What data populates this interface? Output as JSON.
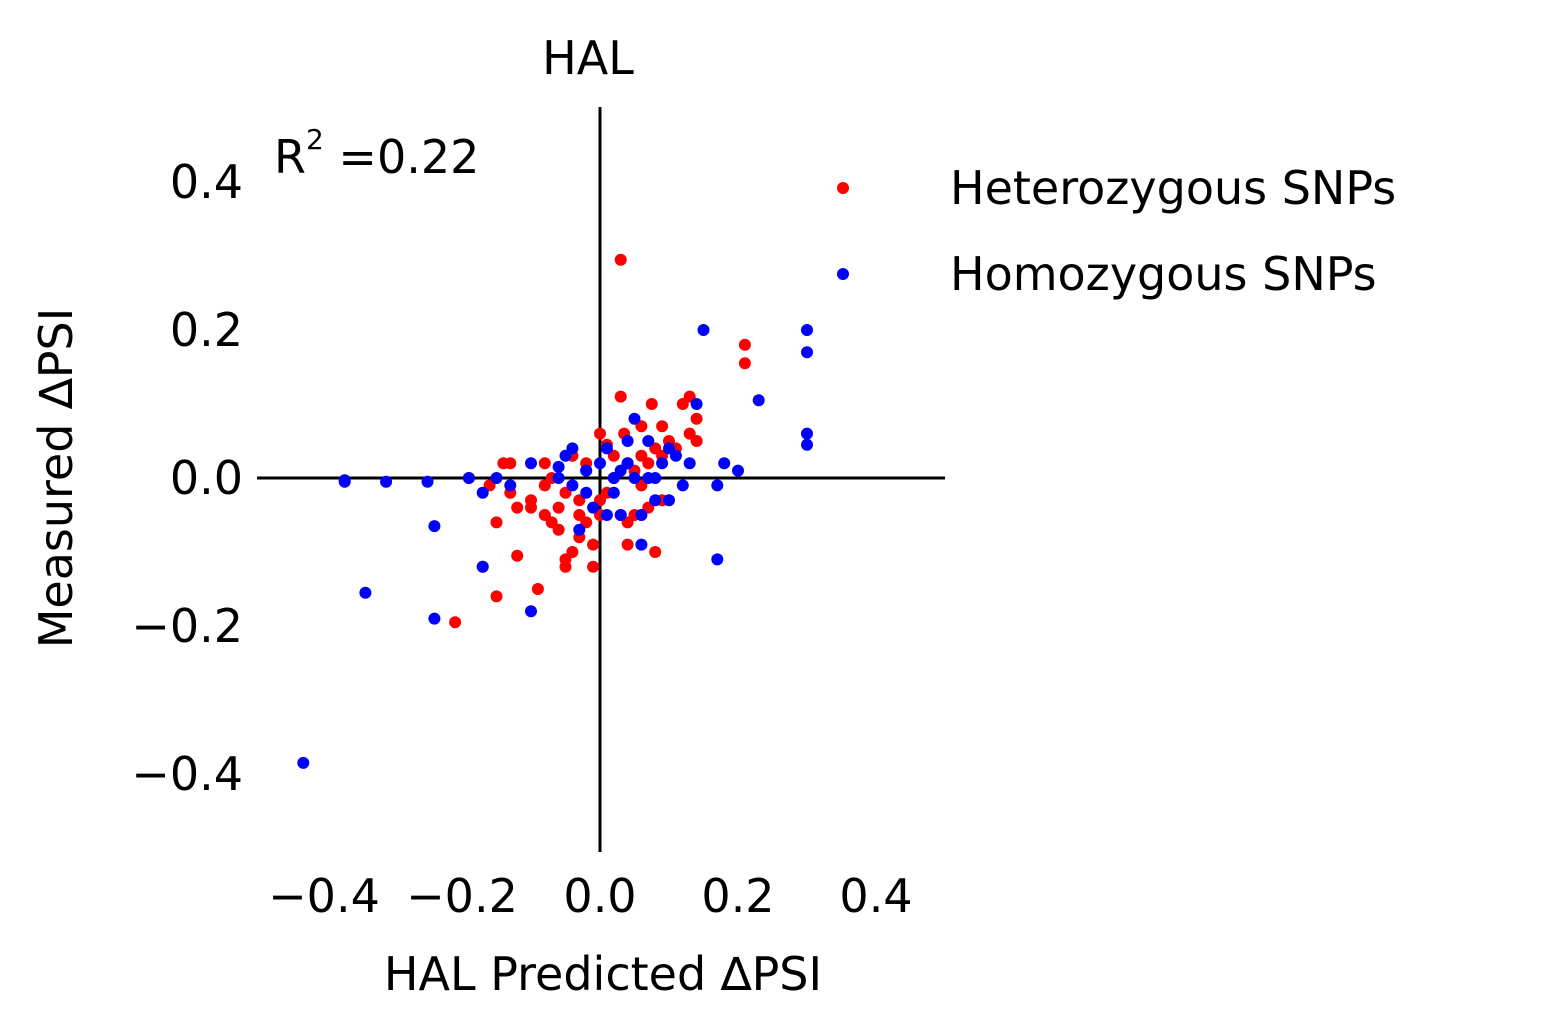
{
  "chart_data": {
    "type": "scatter",
    "title": "HAL",
    "xlabel": "HAL Predicted ∆PSI",
    "ylabel": "Measured ∆PSI",
    "xlim": [
      -0.5,
      0.5
    ],
    "ylim": [
      -0.5,
      0.5
    ],
    "x_ticks": [
      -0.4,
      -0.2,
      0.0,
      0.2,
      0.4
    ],
    "y_ticks": [
      -0.4,
      -0.2,
      0.0,
      0.2,
      0.4
    ],
    "x_tick_labels": [
      "−0.4",
      "−0.2",
      "0.0",
      "0.2",
      "0.4"
    ],
    "y_tick_labels": [
      "−0.4",
      "−0.2",
      "0.0",
      "0.2",
      "0.4"
    ],
    "grid": false,
    "legend_position": "right-top outside",
    "annotation": {
      "base": "R",
      "superscript": "2",
      "rest": " =0.22"
    },
    "series": [
      {
        "name": "Heterozygous SNPs",
        "color": "#ff0000",
        "points": [
          [
            0.03,
            0.295
          ],
          [
            0.21,
            0.18
          ],
          [
            0.21,
            0.155
          ],
          [
            0.03,
            0.11
          ],
          [
            0.13,
            0.11
          ],
          [
            0.075,
            0.1
          ],
          [
            0.12,
            0.1
          ],
          [
            0.14,
            0.08
          ],
          [
            0.06,
            0.07
          ],
          [
            0.09,
            0.07
          ],
          [
            0.13,
            0.06
          ],
          [
            0.035,
            0.06
          ],
          [
            0.0,
            0.06
          ],
          [
            0.14,
            0.05
          ],
          [
            0.1,
            0.05
          ],
          [
            0.08,
            0.04
          ],
          [
            0.01,
            0.045
          ],
          [
            0.06,
            0.03
          ],
          [
            0.04,
            0.02
          ],
          [
            -0.02,
            0.02
          ],
          [
            -0.08,
            0.02
          ],
          [
            -0.13,
            0.02
          ],
          [
            -0.14,
            0.02
          ],
          [
            -0.19,
            0.0
          ],
          [
            -0.16,
            -0.01
          ],
          [
            -0.13,
            -0.02
          ],
          [
            -0.1,
            -0.03
          ],
          [
            -0.12,
            -0.04
          ],
          [
            -0.08,
            -0.05
          ],
          [
            -0.07,
            -0.06
          ],
          [
            -0.06,
            -0.07
          ],
          [
            -0.03,
            -0.08
          ],
          [
            -0.02,
            -0.06
          ],
          [
            0.0,
            -0.05
          ],
          [
            0.03,
            -0.05
          ],
          [
            0.05,
            -0.05
          ],
          [
            0.07,
            -0.04
          ],
          [
            0.09,
            -0.03
          ],
          [
            -0.15,
            -0.06
          ],
          [
            -0.1,
            -0.04
          ],
          [
            -0.04,
            -0.1
          ],
          [
            -0.05,
            -0.11
          ],
          [
            -0.05,
            -0.12
          ],
          [
            -0.01,
            -0.12
          ],
          [
            0.04,
            -0.09
          ],
          [
            0.08,
            -0.1
          ],
          [
            -0.12,
            -0.105
          ],
          [
            -0.09,
            -0.15
          ],
          [
            -0.15,
            -0.16
          ],
          [
            -0.17,
            -0.12
          ],
          [
            -0.21,
            -0.195
          ],
          [
            -0.07,
            0.0
          ],
          [
            -0.05,
            -0.02
          ],
          [
            -0.03,
            -0.03
          ],
          [
            -0.02,
            0.01
          ],
          [
            0.02,
            0.0
          ],
          [
            0.05,
            0.01
          ],
          [
            0.06,
            -0.01
          ],
          [
            0.07,
            0.02
          ],
          [
            -0.04,
            0.03
          ],
          [
            0.01,
            -0.02
          ],
          [
            0.02,
            0.03
          ],
          [
            -0.06,
            -0.04
          ],
          [
            0.04,
            -0.06
          ],
          [
            -0.08,
            -0.01
          ],
          [
            0.11,
            0.04
          ],
          [
            0.09,
            0.03
          ],
          [
            -0.01,
            -0.09
          ],
          [
            -0.03,
            -0.05
          ],
          [
            0.0,
            -0.03
          ]
        ]
      },
      {
        "name": "Homozygous SNPs",
        "color": "#0000ff",
        "points": [
          [
            -0.43,
            -0.385
          ],
          [
            -0.34,
            -0.155
          ],
          [
            -0.24,
            -0.19
          ],
          [
            -0.24,
            -0.065
          ],
          [
            -0.25,
            -0.005
          ],
          [
            -0.31,
            -0.005
          ],
          [
            -0.37,
            -0.005
          ],
          [
            -0.37,
            -0.003
          ],
          [
            -0.17,
            -0.12
          ],
          [
            -0.1,
            -0.18
          ],
          [
            0.3,
            0.2
          ],
          [
            0.3,
            0.17
          ],
          [
            0.15,
            0.2
          ],
          [
            0.23,
            0.105
          ],
          [
            0.3,
            0.06
          ],
          [
            0.3,
            0.045
          ],
          [
            0.17,
            -0.11
          ],
          [
            0.14,
            0.1
          ],
          [
            0.18,
            0.02
          ],
          [
            0.2,
            0.01
          ],
          [
            0.17,
            -0.01
          ],
          [
            0.1,
            0.04
          ],
          [
            0.11,
            0.03
          ],
          [
            0.13,
            0.02
          ],
          [
            0.12,
            -0.01
          ],
          [
            0.1,
            -0.03
          ],
          [
            0.08,
            -0.03
          ],
          [
            0.06,
            -0.05
          ],
          [
            0.03,
            -0.05
          ],
          [
            0.06,
            -0.09
          ],
          [
            0.05,
            0.08
          ],
          [
            0.07,
            0.05
          ],
          [
            0.04,
            0.05
          ],
          [
            0.01,
            0.04
          ],
          [
            -0.04,
            0.04
          ],
          [
            -0.05,
            0.03
          ],
          [
            -0.02,
            0.01
          ],
          [
            0.0,
            0.02
          ],
          [
            0.02,
            0.0
          ],
          [
            0.03,
            0.01
          ],
          [
            0.05,
            0.0
          ],
          [
            0.07,
            0.0
          ],
          [
            -0.02,
            -0.02
          ],
          [
            -0.04,
            -0.01
          ],
          [
            -0.06,
            0.0
          ],
          [
            -0.1,
            0.02
          ],
          [
            -0.13,
            -0.01
          ],
          [
            -0.17,
            -0.02
          ],
          [
            -0.19,
            0.0
          ],
          [
            -0.15,
            0.0
          ],
          [
            -0.03,
            -0.07
          ],
          [
            0.01,
            -0.05
          ],
          [
            -0.06,
            0.015
          ],
          [
            0.04,
            0.02
          ],
          [
            0.02,
            -0.02
          ],
          [
            -0.01,
            -0.04
          ],
          [
            0.08,
            0.0
          ],
          [
            0.09,
            0.02
          ]
        ]
      }
    ]
  }
}
